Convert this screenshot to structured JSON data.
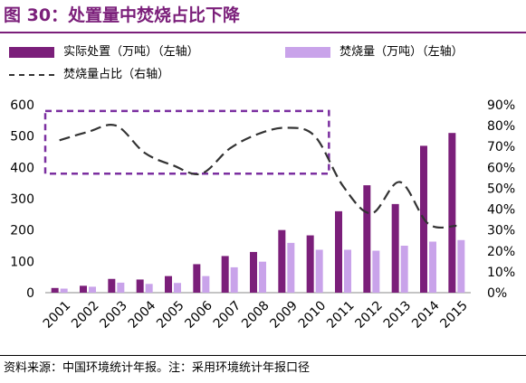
{
  "figure": {
    "title": "图 30：处置量中焚烧占比下降",
    "source": "资料来源：中国环境统计年报。注：采用环境统计年报口径"
  },
  "chart_data": {
    "type": "bar",
    "categories": [
      "2001",
      "2002",
      "2003",
      "2004",
      "2005",
      "2006",
      "2007",
      "2008",
      "2009",
      "2010",
      "2011",
      "2012",
      "2013",
      "2014",
      "2015"
    ],
    "series": [
      {
        "name": "实际处置（万吨）（左轴）",
        "type": "bar",
        "axis": "left",
        "color": "#7b1f7a",
        "values": [
          15,
          22,
          44,
          42,
          53,
          91,
          117,
          130,
          200,
          183,
          260,
          343,
          283,
          469,
          510
        ]
      },
      {
        "name": "焚烧量（万吨）（左轴）",
        "type": "bar",
        "axis": "left",
        "color": "#c9a3ea",
        "values": [
          13,
          19,
          32,
          28,
          31,
          53,
          81,
          99,
          159,
          137,
          137,
          134,
          150,
          163,
          168
        ]
      },
      {
        "name": "焚烧量占比（右轴）",
        "type": "line",
        "style": "dashed",
        "axis": "right",
        "color": "#333333",
        "values": [
          0.73,
          0.77,
          0.8,
          0.67,
          0.61,
          0.57,
          0.69,
          0.76,
          0.79,
          0.75,
          0.51,
          0.38,
          0.53,
          0.33,
          0.32
        ]
      }
    ],
    "y_left": {
      "ylim": [
        0,
        600
      ],
      "ticks": [
        "0",
        "100",
        "200",
        "300",
        "400",
        "500",
        "600"
      ]
    },
    "y_right": {
      "ylim": [
        0,
        0.9
      ],
      "ticks": [
        "0%",
        "10%",
        "20%",
        "30%",
        "40%",
        "50%",
        "60%",
        "70%",
        "80%",
        "90%"
      ]
    },
    "annotation": {
      "type": "dashed-box",
      "color": "#7b2fa0",
      "x_from": "2001",
      "x_to": "2010",
      "y_from": 0.57,
      "y_to": 0.87
    },
    "grid": false,
    "legend_position": "top"
  }
}
